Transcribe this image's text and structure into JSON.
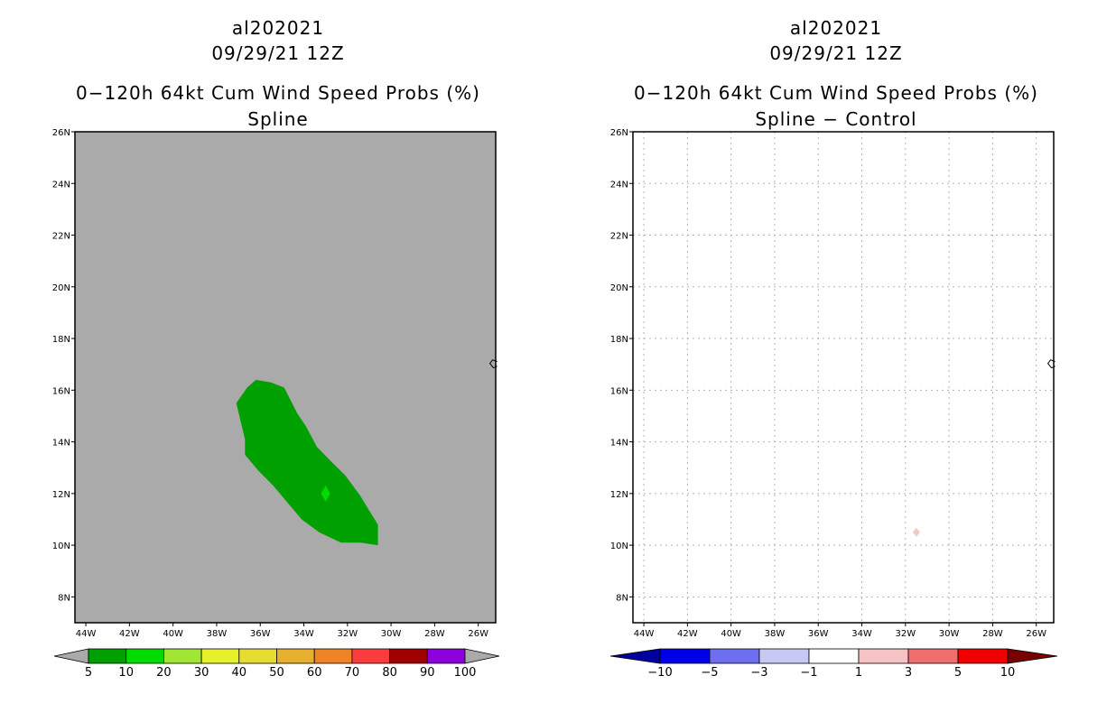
{
  "chart_data": [
    {
      "type": "heatmap",
      "storm_id": "al202021",
      "datetime": "09/29/21 12Z",
      "title": "0−120h 64kt Cum Wind Speed Probs (%)",
      "subtitle": "Spline",
      "lon_ticks": [
        "44W",
        "42W",
        "40W",
        "38W",
        "36W",
        "34W",
        "32W",
        "30W",
        "28W",
        "26W"
      ],
      "lat_ticks": [
        "8N",
        "10N",
        "12N",
        "14N",
        "16N",
        "18N",
        "20N",
        "22N",
        "24N",
        "26N"
      ],
      "lon_range": [
        -44.5,
        -25.2
      ],
      "lat_range": [
        7.0,
        26.0
      ],
      "background_color": "#aaaaaa",
      "contour_polygon": [
        [
          -37.1,
          15.5
        ],
        [
          -36.6,
          16.1
        ],
        [
          -36.2,
          16.4
        ],
        [
          -35.5,
          16.3
        ],
        [
          -34.9,
          16.1
        ],
        [
          -34.3,
          15.1
        ],
        [
          -33.9,
          14.6
        ],
        [
          -33.4,
          13.8
        ],
        [
          -32.7,
          13.2
        ],
        [
          -32.1,
          12.7
        ],
        [
          -31.4,
          11.9
        ],
        [
          -30.9,
          11.2
        ],
        [
          -30.6,
          10.8
        ],
        [
          -30.6,
          10.0
        ],
        [
          -31.4,
          10.1
        ],
        [
          -32.3,
          10.1
        ],
        [
          -33.3,
          10.5
        ],
        [
          -34.1,
          11.0
        ],
        [
          -34.9,
          11.8
        ],
        [
          -35.4,
          12.3
        ],
        [
          -36.1,
          12.9
        ],
        [
          -36.7,
          13.5
        ],
        [
          -36.7,
          14.1
        ]
      ],
      "contour_level": "5-10",
      "contour_color": "#00a000",
      "point_marker": {
        "lon": -33.0,
        "lat": 12.0,
        "color": "#00dc00"
      },
      "coast_marker": {
        "lon": -25.3,
        "lat": 17.0
      },
      "grid": false,
      "colorbar": {
        "labels": [
          "5",
          "10",
          "20",
          "30",
          "40",
          "50",
          "60",
          "70",
          "80",
          "90",
          "100"
        ],
        "colors": [
          "#00a000",
          "#00dc00",
          "#a0e632",
          "#e6f02c",
          "#e6dc32",
          "#e6af2d",
          "#f08228",
          "#fa3c3c",
          "#a00000",
          "#8c00dc"
        ],
        "extend_color": "#aaaaaa"
      }
    },
    {
      "type": "heatmap",
      "storm_id": "al202021",
      "datetime": "09/29/21 12Z",
      "title": "0−120h 64kt Cum Wind Speed Probs (%)",
      "subtitle": "Spline − Control",
      "lon_ticks": [
        "44W",
        "42W",
        "40W",
        "38W",
        "36W",
        "34W",
        "32W",
        "30W",
        "28W",
        "26W"
      ],
      "lat_ticks": [
        "8N",
        "10N",
        "12N",
        "14N",
        "16N",
        "18N",
        "20N",
        "22N",
        "24N",
        "26N"
      ],
      "lon_range": [
        -44.5,
        -25.2
      ],
      "lat_range": [
        7.0,
        26.0
      ],
      "background_color": "#ffffff",
      "point_marker": {
        "lon": -31.5,
        "lat": 10.5,
        "color": "#f5c8c8"
      },
      "coast_marker": {
        "lon": -25.3,
        "lat": 17.0
      },
      "grid": true,
      "colorbar": {
        "labels": [
          "−10",
          "−5",
          "−3",
          "−1",
          "1",
          "3",
          "5",
          "10"
        ],
        "colors": [
          "#0000e6",
          "#6e6ef0",
          "#c8c8f5",
          "#ffffff",
          "#f5c3c3",
          "#f06e6e",
          "#f00000"
        ],
        "left_extend_color": "#00009a",
        "right_extend_color": "#780000"
      }
    }
  ]
}
